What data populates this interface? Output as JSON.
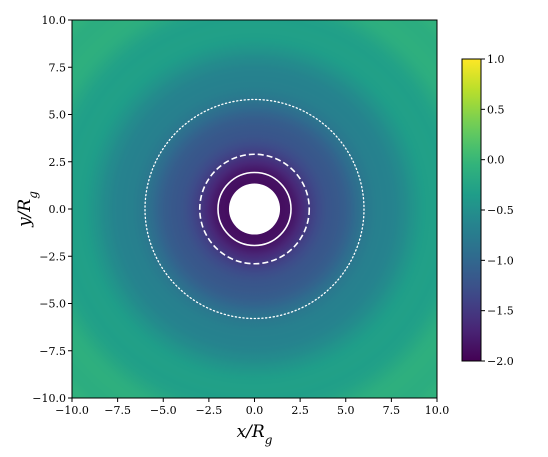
{
  "chart_data": {
    "type": "heatmap",
    "xlabel": "x/R_g",
    "ylabel": "y/R_g",
    "xlim": [
      -10.0,
      10.0
    ],
    "ylim": [
      -10.0,
      10.0
    ],
    "xticks": [
      "−10.0",
      "−7.5",
      "−5.0",
      "−2.5",
      "0.0",
      "2.5",
      "5.0",
      "7.5",
      "10.0"
    ],
    "yticks": [
      "10.0",
      "7.5",
      "5.0",
      "2.5",
      "0.0",
      "−2.5",
      "−5.0",
      "−7.5",
      "−10.0"
    ],
    "xtick_values": [
      -10,
      -7.5,
      -5,
      -2.5,
      0,
      2.5,
      5,
      7.5,
      10
    ],
    "ytick_values": [
      10,
      7.5,
      5,
      2.5,
      0,
      -2.5,
      -5,
      -7.5,
      -10
    ],
    "colormap": "viridis",
    "colorbar": {
      "range": [
        -2.0,
        1.0
      ],
      "ticks": [
        "1.0",
        "0.5",
        "0.0",
        "−0.5",
        "−1.0",
        "−1.5",
        "−2.0"
      ],
      "tick_values": [
        1.0,
        0.5,
        0.0,
        -0.5,
        -1.0,
        -1.5,
        -2.0
      ]
    },
    "field_profile": [
      {
        "r": 1.4,
        "value": -1.9
      },
      {
        "r": 2.0,
        "value": -1.8
      },
      {
        "r": 3.0,
        "value": -1.5
      },
      {
        "r": 4.0,
        "value": -1.25
      },
      {
        "r": 6.0,
        "value": -0.85
      },
      {
        "r": 8.0,
        "value": -0.55
      },
      {
        "r": 10.0,
        "value": -0.3
      },
      {
        "r": 14.0,
        "value": -0.05
      }
    ],
    "excised_radius": 1.4,
    "circles": [
      {
        "r": 2.0,
        "style": "solid",
        "color": "#ffffff"
      },
      {
        "r": 3.0,
        "style": "dashed",
        "color": "#ffffff"
      },
      {
        "r": 6.0,
        "style": "dotted",
        "color": "#ffffff"
      }
    ],
    "grid": false
  }
}
